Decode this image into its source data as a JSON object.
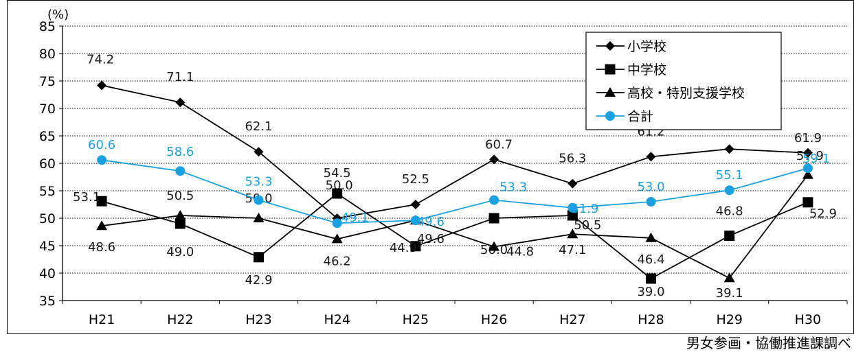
{
  "page": {
    "source_note": "男女参画・協働推進課調べ"
  },
  "chart_data": {
    "type": "line",
    "unit_label": "(%)",
    "x": [
      "H21",
      "H22",
      "H23",
      "H24",
      "H25",
      "H26",
      "H27",
      "H28",
      "H29",
      "H30"
    ],
    "ylim": [
      35,
      85
    ],
    "yticks": [
      35,
      40,
      45,
      50,
      55,
      60,
      65,
      70,
      75,
      80,
      85
    ],
    "grid": "horizontal dotted",
    "legend_position": "top-right",
    "series": [
      {
        "name": "小学校",
        "marker": "diamond",
        "color": "#000000",
        "label_color": "#1a1a1a",
        "values": [
          74.2,
          71.1,
          62.1,
          50.0,
          52.5,
          60.7,
          56.3,
          61.2,
          62.6,
          61.9
        ],
        "labels": [
          "74.2",
          "71.1",
          "62.1",
          "50.0",
          "52.5",
          "60.7",
          "56.3",
          "61.2",
          "62.6",
          "61.9"
        ]
      },
      {
        "name": "中学校",
        "marker": "square",
        "color": "#000000",
        "label_color": "#1a1a1a",
        "values": [
          53.1,
          49.0,
          42.9,
          54.5,
          44.9,
          50.0,
          50.5,
          39.0,
          46.8,
          52.9
        ],
        "labels": [
          "53.1",
          "49.0",
          "42.9",
          "54.5",
          "44.9",
          "50.0",
          "50.5",
          "39.0",
          "46.8",
          "52.9"
        ]
      },
      {
        "name": "高校・特別支援学校",
        "marker": "triangle",
        "color": "#000000",
        "label_color": "#1a1a1a",
        "values": [
          48.6,
          50.5,
          50.0,
          46.2,
          49.6,
          44.8,
          47.1,
          46.4,
          39.1,
          57.9
        ],
        "labels": [
          "48.6",
          "50.5",
          "50.0",
          "46.2",
          "49.6",
          "44.8",
          "47.1",
          "46.4",
          "39.1",
          "57.9"
        ]
      },
      {
        "name": "合計",
        "marker": "circle",
        "color": "#1ba1e2",
        "label_color": "#1ba1e2",
        "values": [
          60.6,
          58.6,
          53.3,
          49.1,
          49.6,
          53.3,
          51.9,
          53.0,
          55.1,
          59.1
        ],
        "labels": [
          "60.6",
          "58.6",
          "53.3",
          "49.1",
          "49.6",
          "53.3",
          "51.9",
          "53.0",
          "55.1",
          "59.1"
        ]
      }
    ]
  }
}
